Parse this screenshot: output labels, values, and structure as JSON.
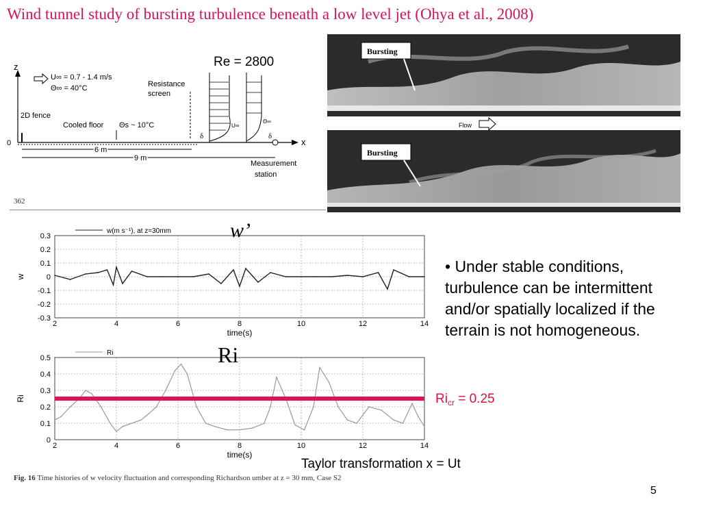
{
  "slide": {
    "title": "Wind tunnel study of bursting turbulence beneath a low level jet  (Ohya et al., 2008)",
    "re_label": "Re = 2800",
    "w_prime_label": "w’",
    "ri_label": "Ri",
    "bullet": "• Under stable conditions, turbulence can be intermittent and/or spatially localized if the terrain is not homogeneous.",
    "ricr_main": "Ri",
    "ricr_sub": "cr",
    "ricr_rest": " = 0.25",
    "taylor": "Taylor transformation x = Ut",
    "page_number": "5",
    "fig_page": "362",
    "caption_bold": "Fig. 16",
    "caption_text": "  Time histories of w velocity fluctuation and corresponding Richardson umber at z = 30 mm, Case S2"
  },
  "diagram": {
    "z_label": "z",
    "x_label": "x",
    "origin": "0",
    "u_inf": "U∞ = 0.7 - 1.4 m/s",
    "theta_inf": "Θ∞ = 40°C",
    "resistance": "Resistance",
    "screen": "screen",
    "fence": "2D fence",
    "cooled_floor": "Cooled floor",
    "theta_s": "Θs ~ 10°C",
    "six_m": "6 m",
    "nine_m": "9 m",
    "measurement": "Measurement",
    "station": "station",
    "delta": "δ",
    "u_small": "U∞",
    "theta_small": "Θ∞"
  },
  "photo": {
    "bursting_label": "Bursting",
    "flow_label": "Flow"
  },
  "chart_data": [
    {
      "type": "line",
      "legend": "w(m s⁻¹), at z=30mm",
      "xlabel": "time(s)",
      "ylabel": "w",
      "xlim": [
        2,
        14
      ],
      "ylim": [
        -0.3,
        0.3
      ],
      "xticks": [
        2,
        4,
        6,
        8,
        10,
        12,
        14
      ],
      "yticks": [
        "0.3",
        "0.2",
        "0.1",
        "0",
        "-0.1",
        "-0.2",
        "-0.3"
      ],
      "grid": true,
      "series": [
        {
          "x": [
            2.0,
            2.5,
            3.0,
            3.4,
            3.7,
            3.9,
            4.0,
            4.2,
            4.5,
            5.0,
            5.5,
            6.0,
            6.5,
            7.0,
            7.4,
            7.8,
            8.0,
            8.2,
            8.6,
            9.0,
            9.5,
            10.0,
            10.5,
            11.0,
            11.5,
            12.0,
            12.5,
            12.8,
            13.0,
            13.5,
            14.0
          ],
          "y": [
            0.01,
            -0.02,
            0.02,
            0.03,
            0.05,
            -0.06,
            0.07,
            -0.05,
            0.04,
            0.0,
            0.0,
            0.0,
            0.0,
            0.02,
            -0.05,
            0.05,
            -0.07,
            0.06,
            -0.04,
            0.03,
            0.0,
            0.0,
            0.0,
            0.0,
            0.01,
            0.0,
            0.03,
            -0.09,
            0.05,
            0.0,
            0.0
          ]
        }
      ]
    },
    {
      "type": "line",
      "legend": "Ri",
      "xlabel": "time(s)",
      "ylabel": "Ri",
      "xlim": [
        2,
        14
      ],
      "ylim": [
        0,
        0.5
      ],
      "xticks": [
        2,
        4,
        6,
        8,
        10,
        12,
        14
      ],
      "yticks": [
        "0.5",
        "0.4",
        "0.3",
        "0.2",
        "0.1",
        "0"
      ],
      "grid": true,
      "threshold": 0.25,
      "threshold_color": "#e0105a",
      "series": [
        {
          "x": [
            2.0,
            2.2,
            2.5,
            2.8,
            3.0,
            3.2,
            3.5,
            3.8,
            4.0,
            4.2,
            4.5,
            4.8,
            5.0,
            5.3,
            5.6,
            5.9,
            6.1,
            6.3,
            6.6,
            6.9,
            7.2,
            7.6,
            8.0,
            8.4,
            8.8,
            9.0,
            9.2,
            9.5,
            9.8,
            10.1,
            10.4,
            10.6,
            10.9,
            11.2,
            11.5,
            11.8,
            12.2,
            12.6,
            13.0,
            13.3,
            13.6,
            13.8,
            14.0
          ],
          "y": [
            0.12,
            0.14,
            0.2,
            0.25,
            0.3,
            0.28,
            0.2,
            0.1,
            0.05,
            0.08,
            0.1,
            0.12,
            0.15,
            0.2,
            0.3,
            0.42,
            0.46,
            0.4,
            0.2,
            0.1,
            0.08,
            0.06,
            0.06,
            0.07,
            0.1,
            0.2,
            0.38,
            0.25,
            0.09,
            0.06,
            0.2,
            0.44,
            0.35,
            0.2,
            0.12,
            0.1,
            0.2,
            0.18,
            0.12,
            0.1,
            0.22,
            0.14,
            0.08
          ]
        }
      ]
    }
  ]
}
